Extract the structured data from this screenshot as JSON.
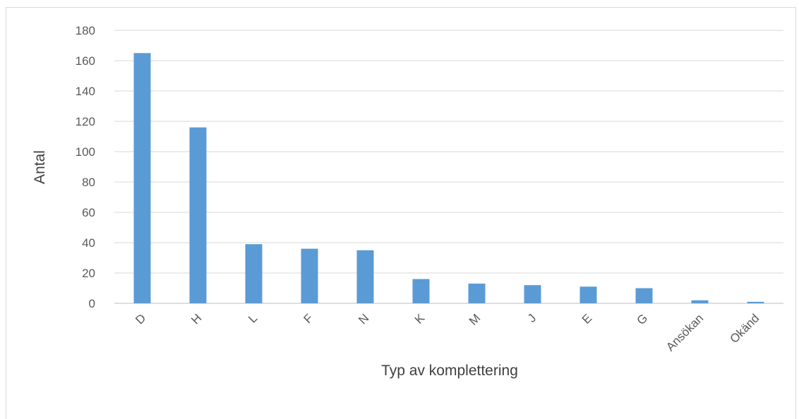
{
  "chart_data": {
    "type": "bar",
    "categories": [
      "D",
      "H",
      "L",
      "F",
      "N",
      "K",
      "M",
      "J",
      "E",
      "G",
      "Ansökan",
      "Okänd"
    ],
    "values": [
      165,
      116,
      39,
      36,
      35,
      16,
      13,
      12,
      11,
      10,
      2,
      1
    ],
    "xlabel": "Typ av komplettering",
    "ylabel": "Antal",
    "ylim": [
      0,
      180
    ],
    "yticks": [
      0,
      20,
      40,
      60,
      80,
      100,
      120,
      140,
      160,
      180
    ],
    "grid": true,
    "bar_color": "#5b9bd5"
  }
}
